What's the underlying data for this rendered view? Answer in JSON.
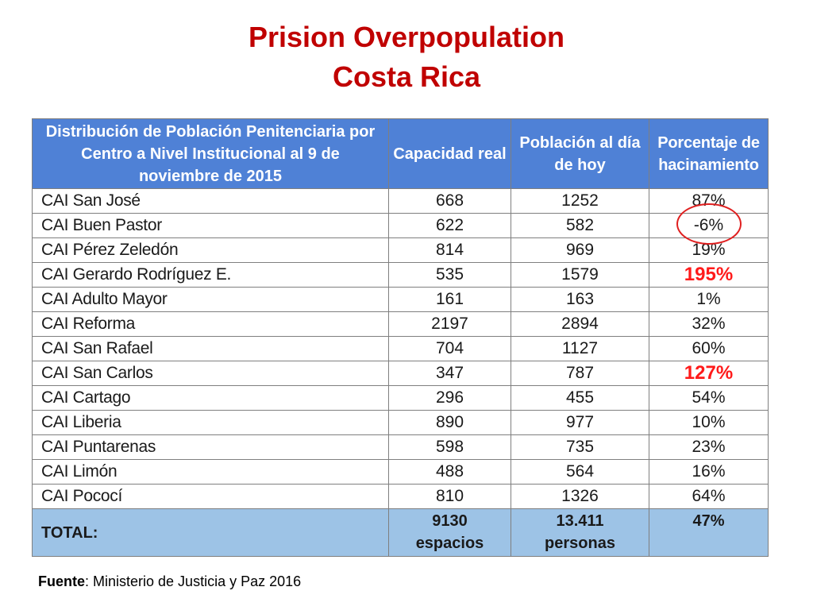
{
  "title": {
    "line1": "Prision Overpopulation",
    "line2": "Costa Rica"
  },
  "colors": {
    "title": "#c00000",
    "header_bg": "#4f81d6",
    "total_bg": "#9dc3e6",
    "highlight": "#ff1a1a",
    "circle": "#e02020"
  },
  "table": {
    "headers": {
      "col1": "Distribución de Población Penitenciaria por Centro a Nivel Institucional al 9 de noviembre de 2015",
      "col2": "Capacidad real",
      "col3": "Población al día de hoy",
      "col4": "Porcentaje de hacinamiento"
    },
    "rows": [
      {
        "name": "CAI San José",
        "capacity": "668",
        "population": "1252",
        "pct": "87%"
      },
      {
        "name": "CAI Buen Pastor",
        "capacity": "622",
        "population": "582",
        "pct": "-6%"
      },
      {
        "name": "CAI Pérez Zeledón",
        "capacity": "814",
        "population": "969",
        "pct": "19%"
      },
      {
        "name": "CAI Gerardo Rodríguez E.",
        "capacity": "535",
        "population": "1579",
        "pct": "195%"
      },
      {
        "name": "CAI Adulto Mayor",
        "capacity": "161",
        "population": "163",
        "pct": "1%"
      },
      {
        "name": "CAI Reforma",
        "capacity": "2197",
        "population": "2894",
        "pct": "32%"
      },
      {
        "name": "CAI San Rafael",
        "capacity": "704",
        "population": "1127",
        "pct": "60%"
      },
      {
        "name": "CAI San Carlos",
        "capacity": "347",
        "population": "787",
        "pct": "127%"
      },
      {
        "name": "CAI Cartago",
        "capacity": "296",
        "population": "455",
        "pct": "54%"
      },
      {
        "name": "CAI Liberia",
        "capacity": "890",
        "population": "977",
        "pct": "10%"
      },
      {
        "name": "CAI Puntarenas",
        "capacity": "598",
        "population": "735",
        "pct": "23%"
      },
      {
        "name": "CAI Limón",
        "capacity": "488",
        "population": "564",
        "pct": "16%"
      },
      {
        "name": "CAI Pococí",
        "capacity": "810",
        "population": "1326",
        "pct": "64%"
      }
    ],
    "total": {
      "label": "TOTAL:",
      "capacity_value": "9130",
      "capacity_unit": "espacios",
      "population_value": "13.411",
      "population_unit": "personas",
      "pct": "47%"
    }
  },
  "source": {
    "label": "Fuente",
    "text": ": Ministerio de Justicia y Paz 2016"
  }
}
